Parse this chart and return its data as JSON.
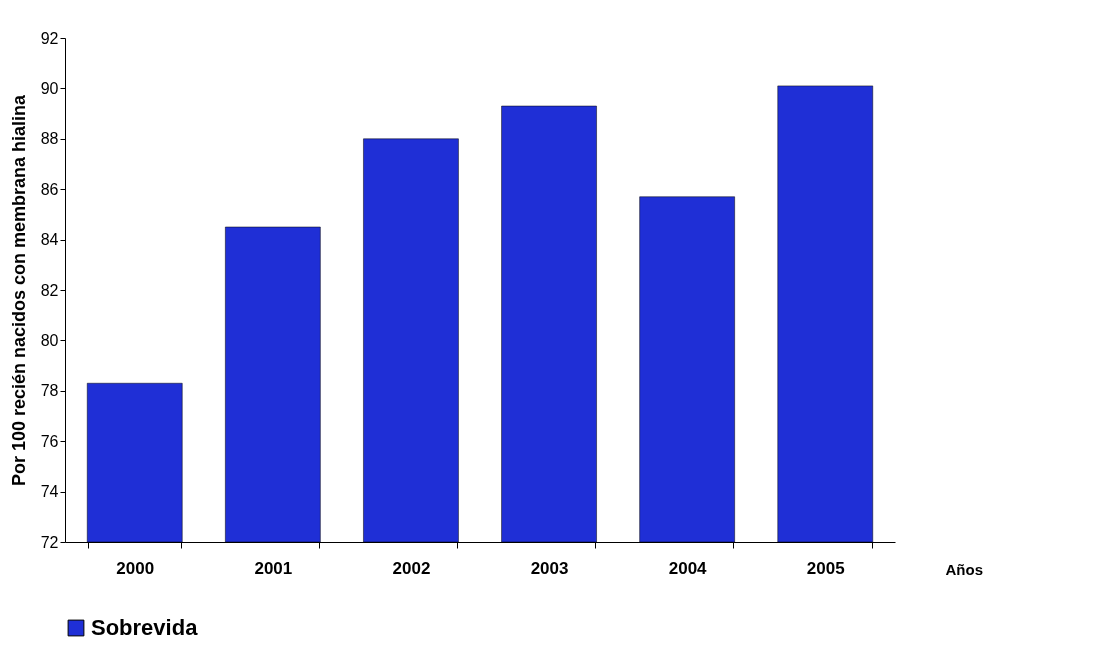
{
  "chart_data": {
    "type": "bar",
    "xlabel": "Años",
    "ylabel": "Por 100 recién nacidos con membrana hialina",
    "categories": [
      "2000",
      "2001",
      "2002",
      "2003",
      "2004",
      "2005"
    ],
    "series": [
      {
        "name": "Sobrevida",
        "color": "#1f2fd6",
        "values": [
          78.3,
          84.5,
          88.0,
          89.3,
          85.7,
          90.1
        ]
      }
    ],
    "ylim": [
      72,
      92
    ],
    "yticks": [
      72,
      74,
      76,
      78,
      80,
      82,
      84,
      86,
      88,
      90,
      92
    ],
    "grid": false,
    "legend": "bottom"
  }
}
